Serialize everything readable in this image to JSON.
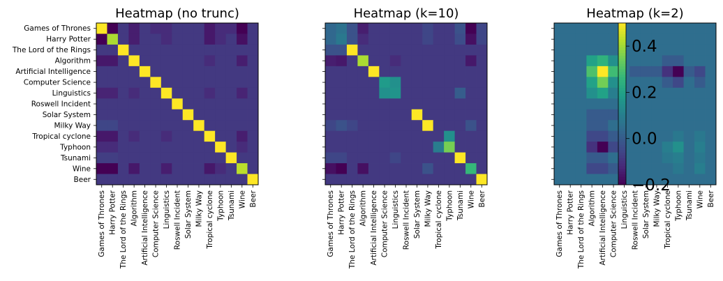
{
  "chart_data": [
    {
      "type": "heatmap",
      "title": "Heatmap (no trunc)",
      "labels": [
        "Games of Thrones",
        "Harry Potter",
        "The Lord of the Rings",
        "Algorithm",
        "Artificial Intelligence",
        "Computer Science",
        "Linguistics",
        "Roswell Incident",
        "Solar System",
        "Milky Way",
        "Tropical cyclone",
        "Typhoon",
        "Tsunami",
        "Wine",
        "Beer"
      ],
      "colormap": "viridis",
      "vmin": -0.2,
      "vmax": 1.0,
      "values": [
        [
          1.0,
          -0.2,
          0.0,
          -0.1,
          0.0,
          -0.05,
          -0.05,
          0.0,
          0.0,
          0.0,
          -0.12,
          -0.05,
          -0.05,
          -0.2,
          0.0
        ],
        [
          -0.2,
          0.85,
          0.0,
          -0.1,
          0.0,
          0.0,
          -0.05,
          0.0,
          0.0,
          0.0,
          -0.12,
          -0.05,
          0.0,
          -0.15,
          0.0
        ],
        [
          0.0,
          0.0,
          1.0,
          0.0,
          0.0,
          0.0,
          0.0,
          0.0,
          0.0,
          0.0,
          0.0,
          0.0,
          0.0,
          0.0,
          0.0
        ],
        [
          -0.12,
          -0.12,
          0.0,
          1.0,
          0.0,
          0.0,
          0.0,
          0.0,
          0.0,
          0.0,
          -0.05,
          0.0,
          0.0,
          -0.1,
          0.0
        ],
        [
          0.0,
          0.0,
          0.0,
          0.0,
          1.0,
          0.0,
          0.0,
          0.0,
          0.0,
          0.0,
          0.0,
          0.0,
          0.0,
          0.0,
          0.0
        ],
        [
          0.0,
          0.0,
          0.0,
          0.0,
          0.0,
          1.0,
          0.0,
          0.0,
          0.0,
          0.0,
          0.0,
          0.0,
          0.0,
          0.0,
          0.0
        ],
        [
          -0.08,
          -0.08,
          0.0,
          -0.05,
          0.0,
          0.0,
          1.0,
          0.0,
          0.0,
          0.0,
          -0.05,
          0.0,
          0.0,
          -0.08,
          0.0
        ],
        [
          0.0,
          0.0,
          0.0,
          0.0,
          0.0,
          0.0,
          0.0,
          1.0,
          0.0,
          0.0,
          0.0,
          0.0,
          0.0,
          0.0,
          0.0
        ],
        [
          0.0,
          0.0,
          0.0,
          0.0,
          0.0,
          0.0,
          0.0,
          0.0,
          1.0,
          0.0,
          0.0,
          0.0,
          0.0,
          0.0,
          0.0
        ],
        [
          0.05,
          0.05,
          0.0,
          0.0,
          0.0,
          0.0,
          0.0,
          0.0,
          0.0,
          1.0,
          0.0,
          0.0,
          0.0,
          0.0,
          0.0
        ],
        [
          -0.12,
          -0.12,
          0.0,
          -0.05,
          0.0,
          0.0,
          -0.05,
          0.0,
          0.0,
          0.0,
          1.0,
          0.0,
          0.0,
          -0.1,
          0.0
        ],
        [
          -0.05,
          -0.05,
          0.0,
          0.0,
          0.0,
          0.0,
          0.0,
          0.0,
          0.0,
          0.0,
          0.0,
          1.0,
          0.0,
          -0.05,
          0.0
        ],
        [
          0.02,
          0.02,
          0.0,
          0.0,
          0.0,
          0.0,
          0.0,
          0.0,
          0.0,
          0.0,
          0.0,
          0.0,
          1.0,
          0.0,
          0.0
        ],
        [
          -0.2,
          -0.2,
          0.0,
          -0.12,
          0.0,
          0.0,
          -0.1,
          0.0,
          0.0,
          0.0,
          -0.12,
          -0.05,
          0.0,
          0.88,
          0.0
        ],
        [
          0.0,
          0.0,
          0.0,
          0.0,
          0.0,
          0.0,
          0.0,
          0.0,
          0.0,
          0.0,
          0.0,
          0.0,
          0.0,
          0.0,
          1.0
        ]
      ]
    },
    {
      "type": "heatmap",
      "title": "Heatmap (k=10)",
      "labels": [
        "Games of Thrones",
        "Harry Potter",
        "The Lord of the Rings",
        "Algorithm",
        "Artificial Intelligence",
        "Computer Science",
        "Linguistics",
        "Roswell Incident",
        "Solar System",
        "Milky Way",
        "Tropical cyclone",
        "Typhoon",
        "Tsunami",
        "Wine",
        "Beer"
      ],
      "colormap": "viridis",
      "vmin": -0.2,
      "vmax": 1.0,
      "values": [
        [
          0.2,
          0.25,
          0.1,
          -0.1,
          0.0,
          0.0,
          0.0,
          0.0,
          0.0,
          0.05,
          0.0,
          0.0,
          0.1,
          -0.2,
          0.05
        ],
        [
          0.2,
          0.28,
          0.1,
          -0.05,
          0.0,
          0.0,
          0.0,
          0.0,
          0.0,
          0.05,
          0.0,
          0.0,
          0.08,
          -0.15,
          0.05
        ],
        [
          0.1,
          0.1,
          1.0,
          0.0,
          0.0,
          0.0,
          0.0,
          0.0,
          0.0,
          0.0,
          0.0,
          0.0,
          0.0,
          0.0,
          0.0
        ],
        [
          -0.1,
          -0.12,
          0.0,
          0.85,
          0.0,
          0.0,
          -0.05,
          0.0,
          0.0,
          0.0,
          0.0,
          0.0,
          0.0,
          -0.12,
          0.0
        ],
        [
          0.0,
          0.0,
          0.0,
          0.0,
          1.0,
          0.0,
          0.0,
          0.0,
          0.0,
          0.0,
          0.0,
          0.0,
          0.0,
          0.0,
          0.0
        ],
        [
          0.0,
          0.0,
          0.0,
          0.0,
          0.0,
          0.45,
          0.4,
          0.0,
          0.0,
          0.0,
          0.0,
          0.0,
          0.0,
          0.0,
          0.0
        ],
        [
          0.0,
          0.0,
          0.0,
          0.0,
          0.0,
          0.4,
          0.42,
          0.0,
          0.0,
          0.0,
          0.0,
          0.0,
          0.15,
          0.0,
          0.0
        ],
        [
          0.0,
          0.0,
          0.0,
          0.0,
          0.0,
          0.0,
          0.0,
          0.0,
          0.0,
          0.0,
          0.0,
          0.0,
          0.0,
          0.0,
          0.0
        ],
        [
          0.0,
          0.0,
          0.0,
          0.0,
          0.0,
          0.0,
          0.0,
          0.0,
          1.0,
          0.0,
          0.0,
          0.0,
          0.0,
          0.0,
          0.0
        ],
        [
          0.05,
          0.1,
          0.05,
          0.0,
          0.0,
          0.0,
          0.0,
          0.0,
          0.0,
          1.0,
          0.0,
          0.0,
          0.0,
          0.1,
          0.0
        ],
        [
          0.0,
          0.0,
          0.0,
          0.0,
          0.0,
          0.0,
          0.0,
          0.0,
          0.0,
          0.0,
          0.0,
          0.4,
          0.0,
          0.0,
          0.0
        ],
        [
          0.0,
          0.0,
          0.0,
          0.0,
          0.0,
          0.0,
          0.0,
          0.0,
          0.0,
          0.0,
          0.3,
          0.75,
          0.0,
          0.0,
          0.0
        ],
        [
          0.05,
          0.05,
          0.0,
          0.0,
          0.0,
          0.0,
          0.05,
          0.0,
          0.0,
          0.0,
          0.0,
          0.0,
          1.0,
          0.0,
          0.0
        ],
        [
          -0.15,
          -0.2,
          0.0,
          -0.15,
          0.0,
          0.0,
          0.0,
          0.0,
          0.0,
          0.1,
          0.0,
          0.0,
          0.0,
          0.6,
          0.0
        ],
        [
          0.0,
          0.0,
          0.0,
          0.0,
          0.0,
          0.0,
          0.0,
          0.0,
          0.0,
          0.0,
          0.0,
          0.0,
          0.0,
          0.0,
          1.0
        ]
      ]
    },
    {
      "type": "heatmap",
      "title": "Heatmap (k=2)",
      "labels": [
        "Games of Thrones",
        "Harry Potter",
        "The Lord of the Rings",
        "Algorithm",
        "Artificial Intelligence",
        "Computer Science",
        "Linguistics",
        "Roswell Incident",
        "Solar System",
        "Milky Way",
        "Tropical cyclone",
        "Typhoon",
        "Tsunami",
        "Wine",
        "Beer"
      ],
      "colormap": "viridis",
      "vmin": -0.2,
      "vmax": 0.5,
      "colorbar_ticks": [
        -0.2,
        0.0,
        0.2,
        0.4
      ],
      "colorbar_ticklabels": [
        "−0.2",
        "0.0",
        "0.2",
        "0.4"
      ],
      "values": [
        [
          0.05,
          0.05,
          0.05,
          0.05,
          0.05,
          0.05,
          0.05,
          0.05,
          0.05,
          0.05,
          0.05,
          0.05,
          0.05,
          0.05,
          0.05
        ],
        [
          0.05,
          0.05,
          0.05,
          0.05,
          0.05,
          0.05,
          0.05,
          0.05,
          0.05,
          0.05,
          0.05,
          0.05,
          0.05,
          0.05,
          0.05
        ],
        [
          0.05,
          0.05,
          0.05,
          0.05,
          0.05,
          0.05,
          0.05,
          0.05,
          0.05,
          0.05,
          0.05,
          0.05,
          0.05,
          0.05,
          0.05
        ],
        [
          0.05,
          0.05,
          0.05,
          0.2,
          0.25,
          0.15,
          0.05,
          0.05,
          0.05,
          0.05,
          0.0,
          0.0,
          0.05,
          0.05,
          0.05
        ],
        [
          0.05,
          0.05,
          0.05,
          0.3,
          0.5,
          0.28,
          0.05,
          0.0,
          0.0,
          0.0,
          -0.1,
          -0.2,
          0.0,
          -0.05,
          0.05
        ],
        [
          0.05,
          0.05,
          0.05,
          0.2,
          0.35,
          0.15,
          0.05,
          0.05,
          0.05,
          0.05,
          0.0,
          -0.05,
          0.05,
          0.0,
          0.05
        ],
        [
          0.05,
          0.05,
          0.05,
          0.15,
          0.2,
          0.1,
          0.05,
          0.05,
          0.05,
          0.05,
          0.05,
          0.05,
          0.05,
          0.05,
          0.05
        ],
        [
          0.05,
          0.05,
          0.05,
          0.05,
          0.05,
          0.05,
          0.05,
          0.05,
          0.05,
          0.05,
          0.05,
          0.05,
          0.05,
          0.05,
          0.05
        ],
        [
          0.05,
          0.05,
          0.05,
          0.0,
          0.0,
          0.0,
          0.05,
          0.05,
          0.05,
          0.05,
          0.05,
          0.05,
          0.05,
          0.05,
          0.05
        ],
        [
          0.05,
          0.05,
          0.05,
          0.0,
          0.0,
          0.05,
          0.05,
          0.05,
          0.05,
          0.05,
          0.05,
          0.05,
          0.05,
          0.05,
          0.05
        ],
        [
          0.05,
          0.05,
          0.05,
          -0.05,
          -0.05,
          0.0,
          0.05,
          0.05,
          0.05,
          0.05,
          0.05,
          0.08,
          0.05,
          0.08,
          0.05
        ],
        [
          0.05,
          0.05,
          0.05,
          -0.1,
          -0.2,
          -0.05,
          0.05,
          0.05,
          0.05,
          0.05,
          0.1,
          0.15,
          0.05,
          0.1,
          0.05
        ],
        [
          0.05,
          0.05,
          0.05,
          0.0,
          0.0,
          0.05,
          0.05,
          0.05,
          0.05,
          0.05,
          0.08,
          0.1,
          0.05,
          0.08,
          0.05
        ],
        [
          0.05,
          0.05,
          0.05,
          -0.05,
          -0.05,
          0.0,
          0.05,
          0.05,
          0.05,
          0.05,
          0.05,
          0.08,
          0.05,
          0.1,
          0.05
        ],
        [
          0.05,
          0.05,
          0.05,
          0.05,
          0.05,
          0.05,
          0.05,
          0.05,
          0.05,
          0.05,
          0.05,
          0.05,
          0.05,
          0.05,
          0.05
        ]
      ]
    }
  ]
}
